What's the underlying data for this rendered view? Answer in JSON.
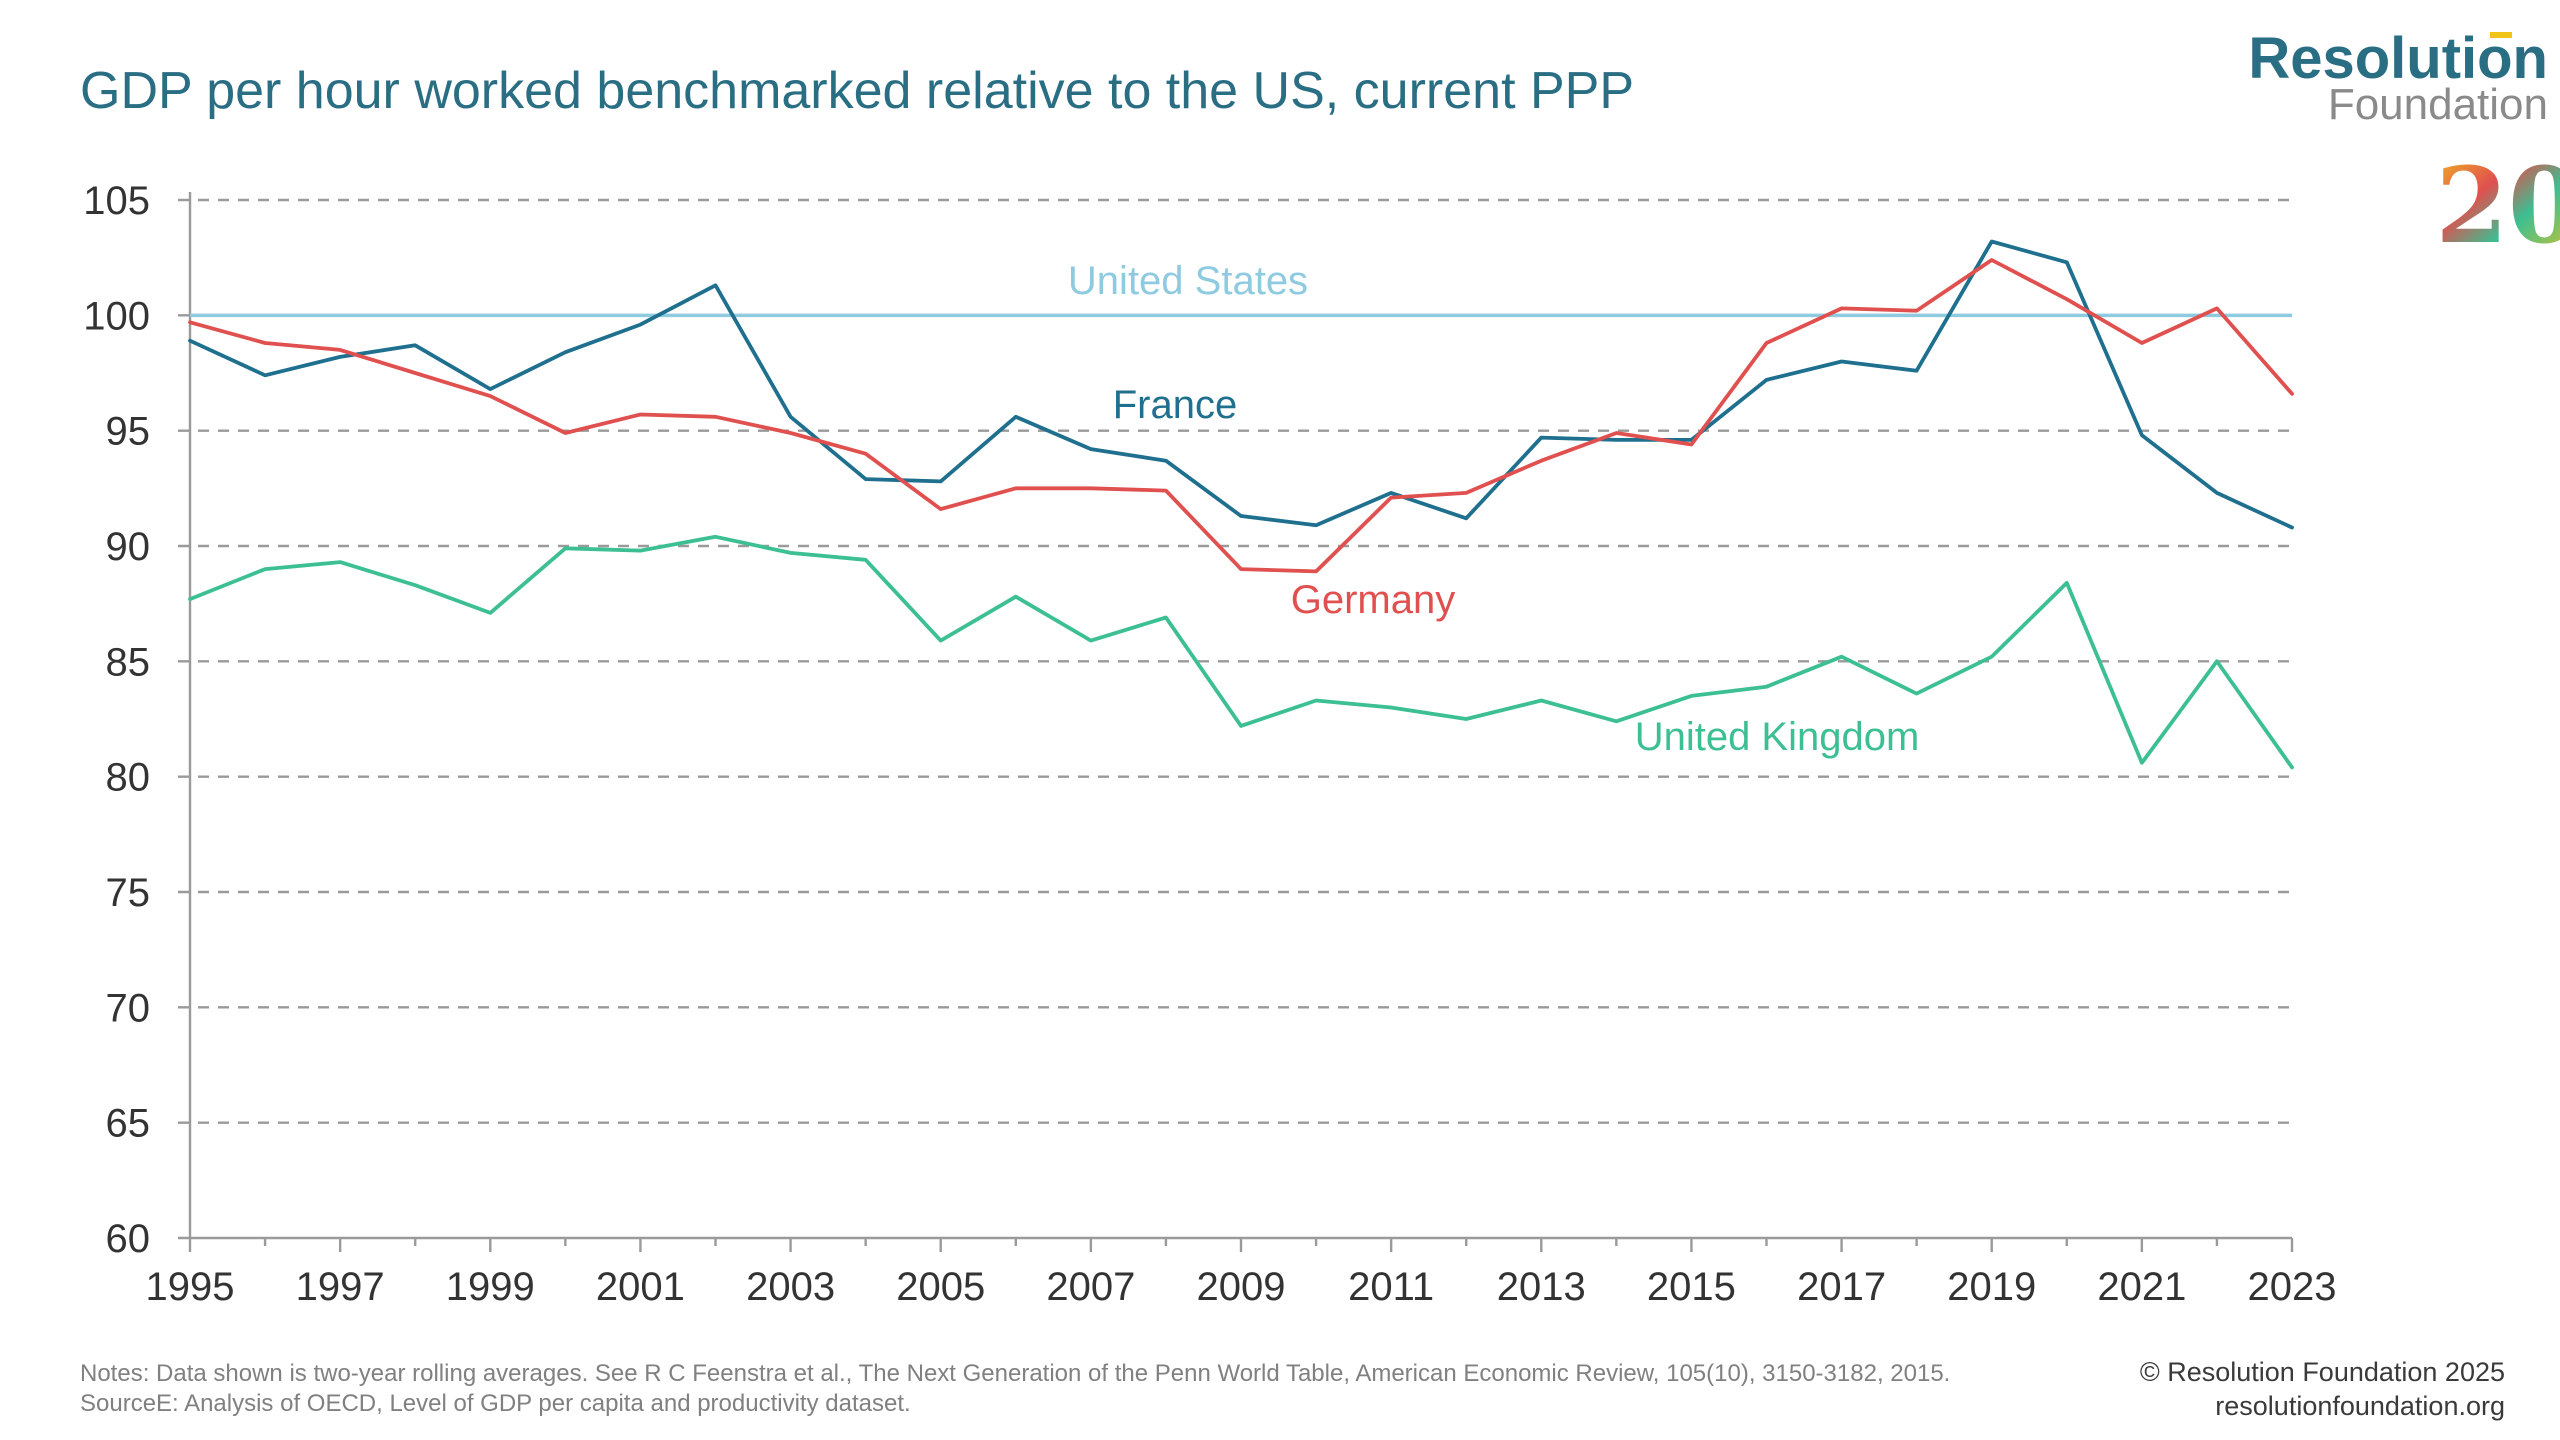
{
  "chart_data": {
    "type": "line",
    "title": "GDP per hour worked benchmarked relative to the US, current PPP",
    "xlabel": "",
    "ylabel": "",
    "x": [
      1995,
      1996,
      1997,
      1998,
      1999,
      2000,
      2001,
      2002,
      2003,
      2004,
      2005,
      2006,
      2007,
      2008,
      2009,
      2010,
      2011,
      2012,
      2013,
      2014,
      2015,
      2016,
      2017,
      2018,
      2019,
      2020,
      2021,
      2022,
      2023
    ],
    "xlim": [
      1995,
      2023
    ],
    "ylim": [
      60,
      105
    ],
    "x_ticks": [
      1995,
      1997,
      1999,
      2001,
      2003,
      2005,
      2007,
      2009,
      2011,
      2013,
      2015,
      2017,
      2019,
      2021,
      2023
    ],
    "y_ticks": [
      60,
      65,
      70,
      75,
      80,
      85,
      90,
      95,
      100,
      105
    ],
    "grid": "horizontal dashed",
    "legend": "inline labels",
    "reference_line": {
      "name": "United States",
      "value": 100,
      "color": "#8ecae0"
    },
    "series": [
      {
        "name": "France",
        "color": "#1f6f8f",
        "values": [
          98.9,
          97.4,
          98.2,
          98.7,
          96.8,
          98.4,
          99.6,
          101.3,
          95.6,
          92.9,
          92.8,
          95.6,
          94.2,
          93.7,
          91.3,
          90.9,
          92.3,
          91.2,
          94.7,
          94.6,
          94.6,
          97.2,
          98.0,
          97.6,
          103.2,
          102.3,
          94.8,
          92.3,
          90.8
        ]
      },
      {
        "name": "Germany",
        "color": "#e0504f",
        "values": [
          99.7,
          98.8,
          98.5,
          97.5,
          96.5,
          94.9,
          95.7,
          95.6,
          94.9,
          94.0,
          91.6,
          92.5,
          92.5,
          92.4,
          89.0,
          88.9,
          92.1,
          92.3,
          93.7,
          94.9,
          94.4,
          98.8,
          100.3,
          100.2,
          102.4,
          100.7,
          98.8,
          100.3,
          96.6
        ]
      },
      {
        "name": "United Kingdom",
        "color": "#3cbf92",
        "values": [
          87.7,
          89.0,
          89.3,
          88.3,
          87.1,
          89.9,
          89.8,
          90.4,
          89.7,
          89.4,
          85.9,
          87.8,
          85.9,
          86.9,
          82.2,
          83.3,
          83.0,
          82.5,
          83.3,
          82.4,
          83.5,
          83.9,
          85.2,
          83.6,
          85.2,
          88.4,
          80.6,
          85.0,
          80.4
        ]
      }
    ]
  },
  "notes": "Notes: Data shown is two-year rolling averages. See R C Feenstra et al., The Next Generation of the Penn World Table, American Economic Review, 105(10), 3150-3182, 2015.",
  "source": "SourceE: Analysis of OECD, Level of GDP per capita and productivity dataset.",
  "copyright": "© Resolution Foundation 2025",
  "website": "resolutionfoundation.org",
  "logo": {
    "name": "Resolution",
    "sub": "Foundation",
    "anniversary": "20"
  }
}
